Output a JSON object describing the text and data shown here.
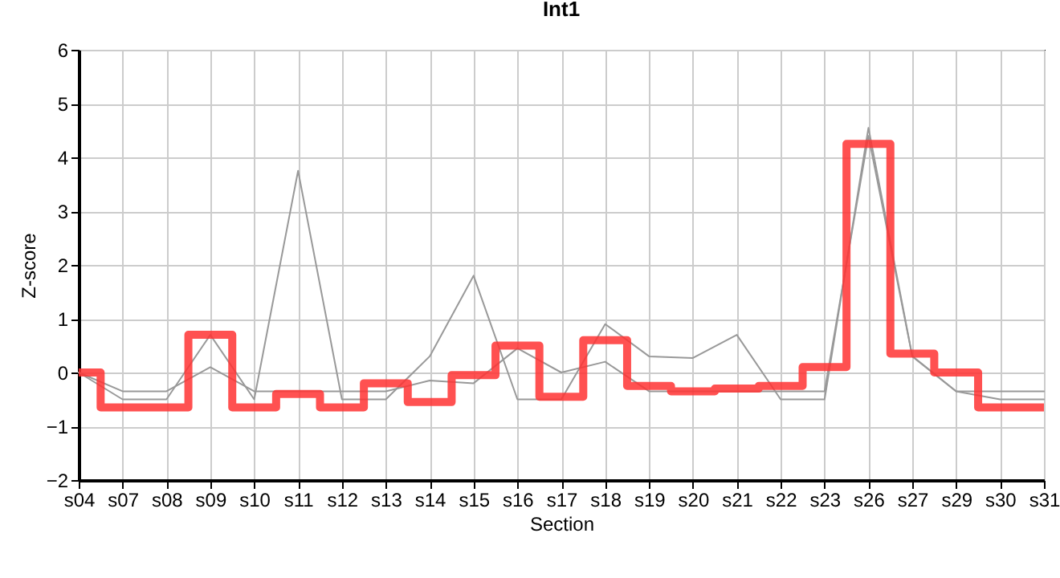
{
  "chart_data": {
    "type": "line",
    "title": "Int1",
    "xlabel": "Section",
    "ylabel": "Z-score",
    "categories": [
      "s04",
      "s07",
      "s08",
      "s09",
      "s10",
      "s11",
      "s12",
      "s13",
      "s14",
      "s15",
      "s16",
      "s17",
      "s18",
      "s19",
      "s20",
      "s21",
      "s22",
      "s23",
      "s26",
      "s27",
      "s29",
      "s30",
      "s31"
    ],
    "series": [
      {
        "color": "#999999",
        "values": [
          0,
          -0.5,
          -0.5,
          0.7,
          -0.5,
          3.75,
          -0.5,
          -0.5,
          0.3,
          1.8,
          -0.5,
          -0.5,
          0.9,
          0.3,
          0.27,
          0.7,
          -0.5,
          -0.5,
          4.55,
          0.3,
          -0.35,
          -0.5,
          -0.5
        ]
      },
      {
        "color": "#999999",
        "values": [
          0,
          -0.35,
          -0.35,
          0.1,
          -0.35,
          -0.35,
          -0.35,
          -0.35,
          -0.15,
          -0.2,
          0.45,
          0,
          0.2,
          -0.35,
          -0.35,
          -0.35,
          -0.35,
          -0.35,
          4.4,
          0.3,
          -0.35,
          -0.35,
          -0.35
        ]
      },
      {
        "type": "step",
        "color": "#ff3333",
        "values": [
          0,
          -0.65,
          -0.65,
          0.7,
          -0.65,
          -0.4,
          -0.65,
          -0.2,
          -0.55,
          -0.05,
          0.5,
          -0.45,
          0.6,
          -0.25,
          -0.35,
          -0.3,
          -0.25,
          0.1,
          4.25,
          0.35,
          0,
          -0.65,
          -0.65
        ]
      }
    ],
    "ylim": [
      -2,
      6
    ],
    "yticks": [
      -2,
      -1,
      0,
      1,
      2,
      3,
      4,
      5,
      6
    ],
    "grid": true
  }
}
